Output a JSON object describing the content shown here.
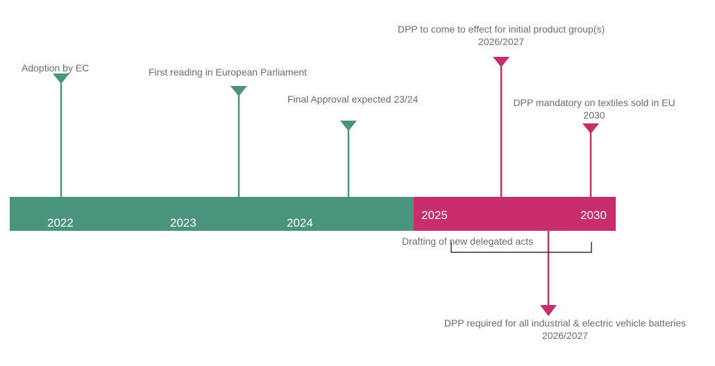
{
  "colors": {
    "green": "#4a947d",
    "magenta": "#c82e6b",
    "text": "#6b6b6b",
    "bracket": "#333333"
  },
  "years": [
    "2022",
    "2023",
    "2024",
    "2025",
    "2030"
  ],
  "milestones": [
    {
      "text": "Adoption by EC"
    },
    {
      "text": "First reading in European Parliament"
    },
    {
      "text": "Final Approval expected 23/24"
    },
    {
      "text": "DPP to come to effect for initial product group(s)",
      "date": "2026/2027"
    },
    {
      "text": "DPP mandatory on textiles sold in EU",
      "date": "2030"
    },
    {
      "text": "DPP required for all industrial & electric vehicle batteries",
      "date": "2026/2027"
    }
  ],
  "drafting": {
    "text": "Drafting of new delegated acts"
  }
}
